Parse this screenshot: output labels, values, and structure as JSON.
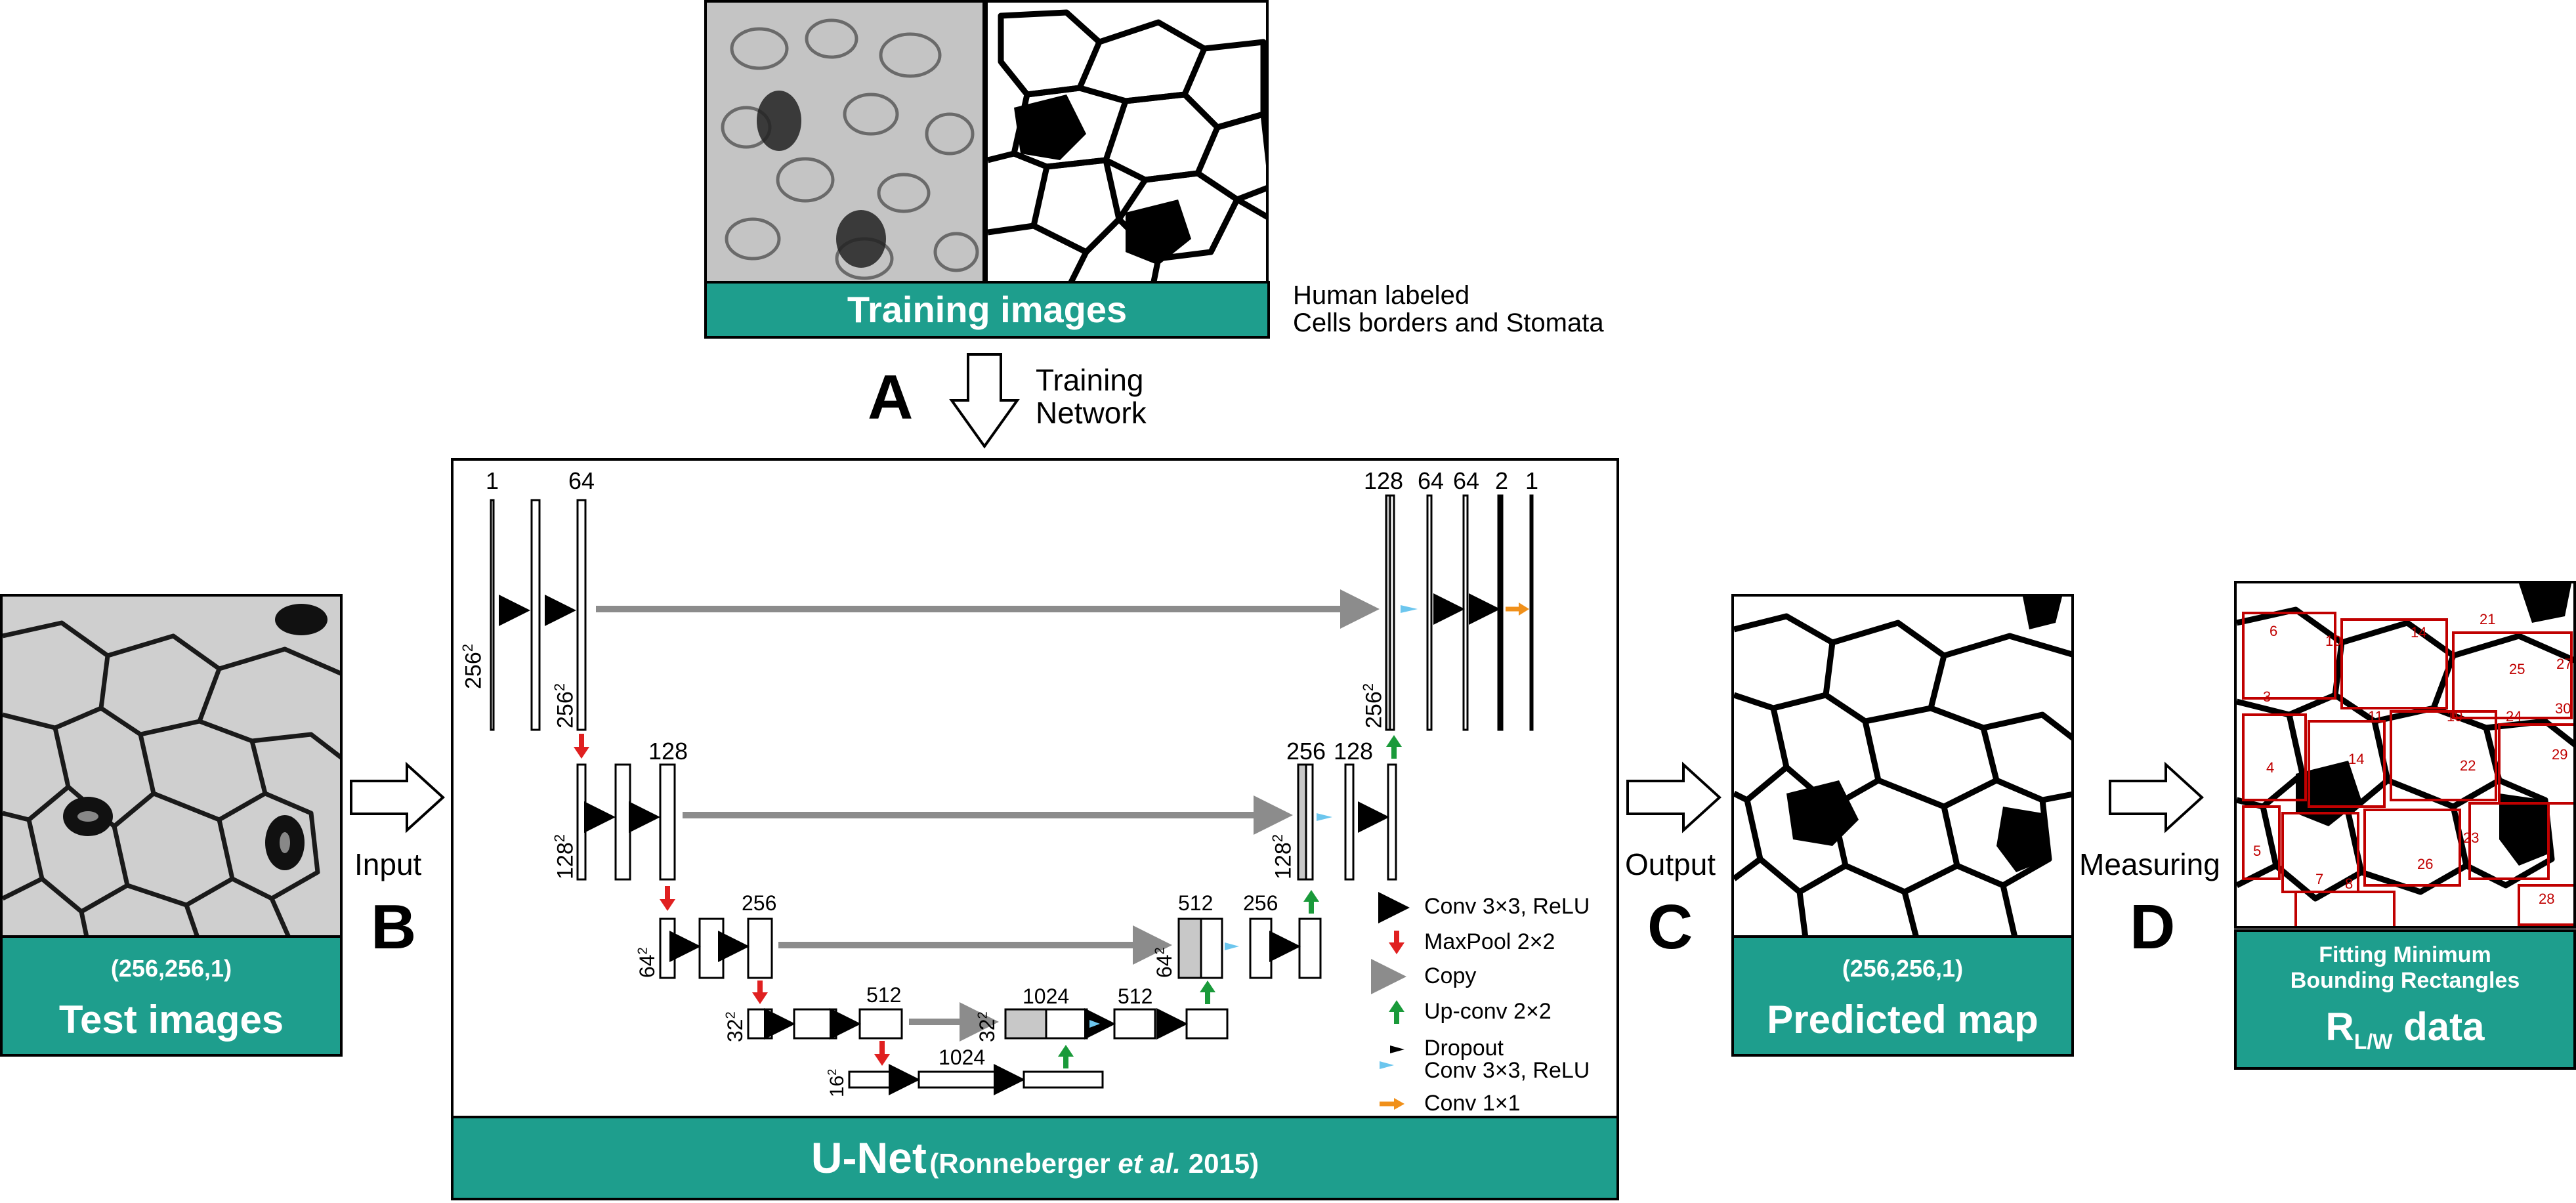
{
  "training": {
    "caption": "Training images",
    "note_line1": "Human labeled",
    "note_line2": "Cells borders and Stomata"
  },
  "step_a": {
    "letter": "A",
    "label_line1": "Training",
    "label_line2": "Network"
  },
  "step_b": {
    "letter": "B",
    "label": "Input"
  },
  "step_c": {
    "letter": "C",
    "label": "Output"
  },
  "step_d": {
    "letter": "D",
    "label": "Measuring"
  },
  "test": {
    "shape": "(256,256,1)",
    "caption": "Test images"
  },
  "predicted": {
    "shape": "(256,256,1)",
    "caption": "Predicted map"
  },
  "rlw": {
    "caption_line1": "Fitting Minimum",
    "caption_line2": "Bounding Rectangles",
    "label_main": "R",
    "label_sub": "L/W",
    "label_tail": " data"
  },
  "unet": {
    "title": "U-Net",
    "citation_pre": "(Ronneberger ",
    "citation_em": "et al.",
    "citation_post": " 2015)",
    "channels": {
      "c1": "1",
      "c64": "64",
      "c128a": "128",
      "c256a": "256",
      "c512a": "512",
      "c1024": "1024",
      "c512b": "512",
      "c1024b": "1024",
      "c512c": "512",
      "c256b": "256",
      "c256c": "256",
      "c128b": "128",
      "c128c": "128",
      "c64b": "64",
      "c64c": "64",
      "c2": "2",
      "c1b": "1"
    },
    "sizes": {
      "s256": "256",
      "s128": "128",
      "s64": "64",
      "s32": "32",
      "s16": "16",
      "sup": "2"
    },
    "legend": [
      {
        "label": "Conv 3×3, ReLU",
        "color": "#000000"
      },
      {
        "label": "MaxPool 2×2",
        "color": "#e02020"
      },
      {
        "label": "Copy",
        "color": "#8c8c8c"
      },
      {
        "label": "Up-conv 2×2",
        "color": "#1a9a3a"
      },
      {
        "label": "Dropout",
        "color": "#6cc6ee"
      },
      {
        "label": "Conv 3×3, ReLU",
        "color": "#000000"
      },
      {
        "label": "Conv 1×1",
        "color": "#f0901a"
      }
    ]
  },
  "cell_numbers": [
    "3",
    "4",
    "5",
    "6",
    "7",
    "8",
    "9",
    "10",
    "11",
    "14",
    "19",
    "21",
    "22",
    "23",
    "24",
    "25",
    "26",
    "27",
    "28",
    "29",
    "30"
  ],
  "colors": {
    "teal": "#1e9e8d",
    "copy_gray": "#8c8c8c",
    "pool_red": "#e02020",
    "upconv_green": "#1a9a3a",
    "dropout_blue": "#6cc6ee",
    "conv1_orange": "#f0901a",
    "rect_red": "#c00000"
  }
}
